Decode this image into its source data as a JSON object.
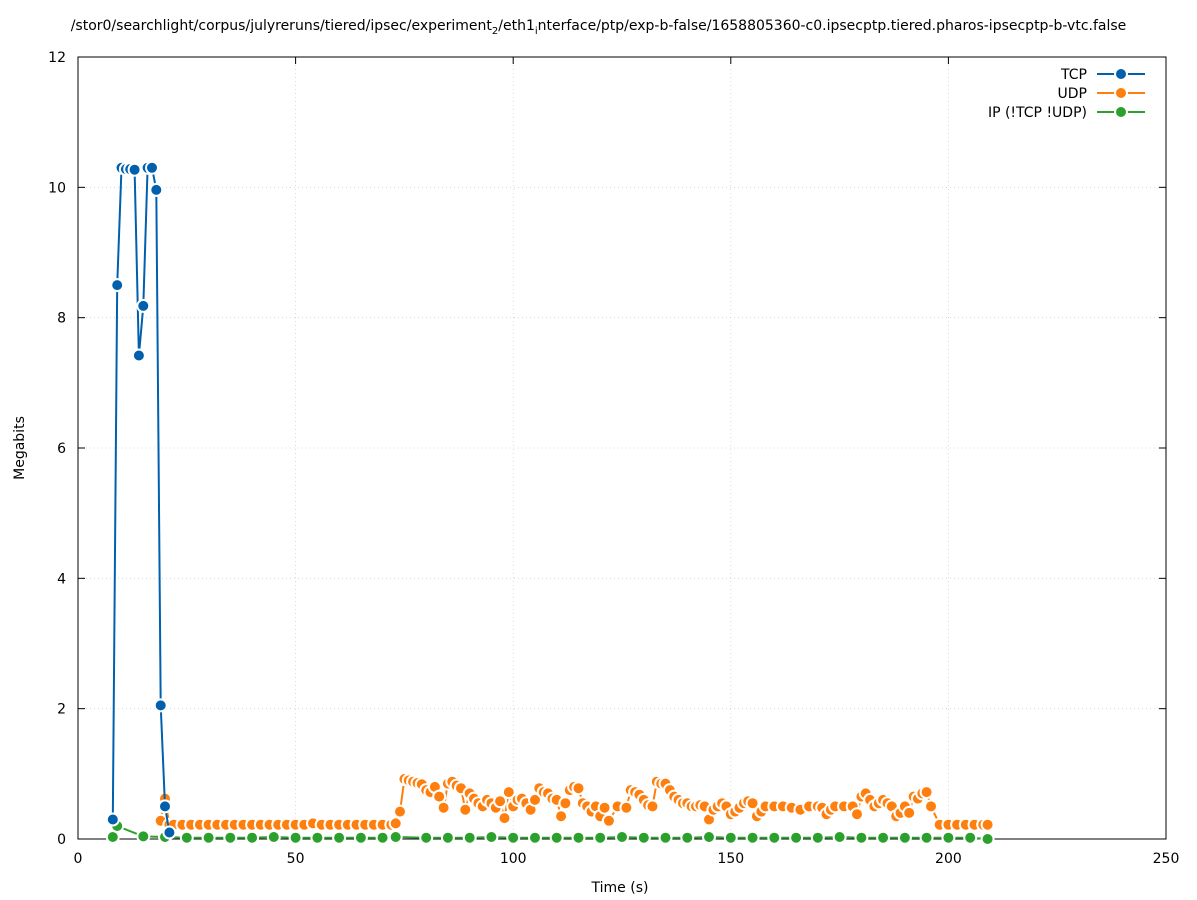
{
  "chart_data": {
    "type": "line",
    "title_parts": {
      "part1": "/stor0/searchlight/corpus/julyreruns/tiered/ipsec/experiment",
      "sub1": "2",
      "part2": "/eth1",
      "sub2": "i",
      "part3": "nterface/ptp/exp-b-false/1658805360-c0.ipsecptp.tiered.pharos-ipsecptp-b-vtc.false"
    },
    "xlabel": "Time (s)",
    "ylabel": "Megabits",
    "xlim": [
      0,
      250
    ],
    "ylim": [
      0,
      12
    ],
    "xticks": [
      0,
      50,
      100,
      150,
      200,
      250
    ],
    "yticks": [
      0,
      2,
      4,
      6,
      8,
      10,
      12
    ],
    "grid": true,
    "legend_position": "top-right",
    "series": [
      {
        "name": "TCP",
        "color": "#0060ad",
        "x": [
          8,
          9,
          10,
          11,
          12,
          13,
          14,
          15,
          16,
          17,
          18,
          19,
          20,
          21
        ],
        "y": [
          0.3,
          8.5,
          10.3,
          10.28,
          10.28,
          10.27,
          7.42,
          8.18,
          10.3,
          10.3,
          9.96,
          2.05,
          0.5,
          0.1
        ]
      },
      {
        "name": "UDP",
        "color": "#ff7f0e",
        "x": [
          19,
          20,
          21,
          22,
          24,
          26,
          28,
          30,
          32,
          34,
          36,
          38,
          40,
          42,
          44,
          46,
          48,
          50,
          52,
          54,
          56,
          58,
          60,
          62,
          64,
          66,
          68,
          70,
          72,
          73,
          74,
          75,
          76,
          77,
          78,
          79,
          80,
          81,
          82,
          83,
          84,
          85,
          86,
          87,
          88,
          89,
          90,
          91,
          92,
          93,
          94,
          95,
          96,
          97,
          98,
          99,
          100,
          101,
          102,
          103,
          104,
          105,
          106,
          107,
          108,
          109,
          110,
          111,
          112,
          113,
          114,
          115,
          116,
          117,
          118,
          119,
          120,
          121,
          122,
          124,
          126,
          127,
          128,
          129,
          130,
          131,
          132,
          133,
          134,
          135,
          136,
          137,
          138,
          139,
          140,
          141,
          142,
          143,
          144,
          145,
          146,
          147,
          148,
          149,
          150,
          151,
          152,
          153,
          154,
          155,
          156,
          157,
          158,
          160,
          162,
          164,
          166,
          168,
          170,
          171,
          172,
          173,
          174,
          176,
          178,
          179,
          180,
          181,
          182,
          183,
          184,
          185,
          186,
          187,
          188,
          189,
          190,
          191,
          192,
          193,
          194,
          195,
          196,
          198,
          200,
          202,
          204,
          206,
          208,
          209
        ],
        "y": [
          0.28,
          0.62,
          0.22,
          0.22,
          0.22,
          0.22,
          0.22,
          0.22,
          0.22,
          0.22,
          0.22,
          0.22,
          0.22,
          0.22,
          0.22,
          0.22,
          0.22,
          0.22,
          0.22,
          0.24,
          0.22,
          0.22,
          0.22,
          0.22,
          0.22,
          0.22,
          0.22,
          0.22,
          0.22,
          0.24,
          0.42,
          0.92,
          0.9,
          0.88,
          0.86,
          0.84,
          0.75,
          0.72,
          0.8,
          0.65,
          0.48,
          0.85,
          0.88,
          0.82,
          0.78,
          0.45,
          0.7,
          0.62,
          0.55,
          0.5,
          0.6,
          0.55,
          0.48,
          0.58,
          0.32,
          0.72,
          0.5,
          0.6,
          0.62,
          0.55,
          0.45,
          0.6,
          0.78,
          0.72,
          0.7,
          0.62,
          0.6,
          0.35,
          0.55,
          0.75,
          0.8,
          0.78,
          0.55,
          0.5,
          0.42,
          0.5,
          0.35,
          0.48,
          0.28,
          0.5,
          0.48,
          0.75,
          0.72,
          0.68,
          0.6,
          0.52,
          0.5,
          0.88,
          0.85,
          0.85,
          0.75,
          0.65,
          0.6,
          0.55,
          0.55,
          0.5,
          0.5,
          0.52,
          0.5,
          0.3,
          0.45,
          0.5,
          0.55,
          0.5,
          0.38,
          0.42,
          0.48,
          0.55,
          0.58,
          0.55,
          0.35,
          0.42,
          0.5,
          0.5,
          0.5,
          0.48,
          0.45,
          0.5,
          0.5,
          0.48,
          0.38,
          0.45,
          0.5,
          0.5,
          0.5,
          0.38,
          0.65,
          0.7,
          0.6,
          0.5,
          0.55,
          0.6,
          0.55,
          0.5,
          0.35,
          0.4,
          0.5,
          0.4,
          0.65,
          0.62,
          0.7,
          0.72,
          0.5,
          0.22,
          0.22,
          0.22,
          0.22,
          0.22,
          0.22,
          0.22
        ]
      },
      {
        "name": "IP (!TCP  !UDP)",
        "color": "#2ca02c",
        "x": [
          8,
          9,
          15,
          20,
          25,
          30,
          35,
          40,
          45,
          50,
          55,
          60,
          65,
          70,
          73,
          80,
          85,
          90,
          95,
          100,
          105,
          110,
          115,
          120,
          125,
          130,
          135,
          140,
          145,
          150,
          155,
          160,
          165,
          170,
          175,
          180,
          185,
          190,
          195,
          200,
          205,
          209
        ],
        "y": [
          0.03,
          0.2,
          0.04,
          0.03,
          0.02,
          0.02,
          0.02,
          0.02,
          0.03,
          0.02,
          0.02,
          0.02,
          0.02,
          0.02,
          0.03,
          0.02,
          0.02,
          0.02,
          0.03,
          0.02,
          0.02,
          0.02,
          0.02,
          0.02,
          0.03,
          0.02,
          0.02,
          0.02,
          0.03,
          0.02,
          0.02,
          0.02,
          0.02,
          0.02,
          0.03,
          0.02,
          0.02,
          0.02,
          0.02,
          0.02,
          0.02,
          0.0
        ]
      }
    ]
  }
}
